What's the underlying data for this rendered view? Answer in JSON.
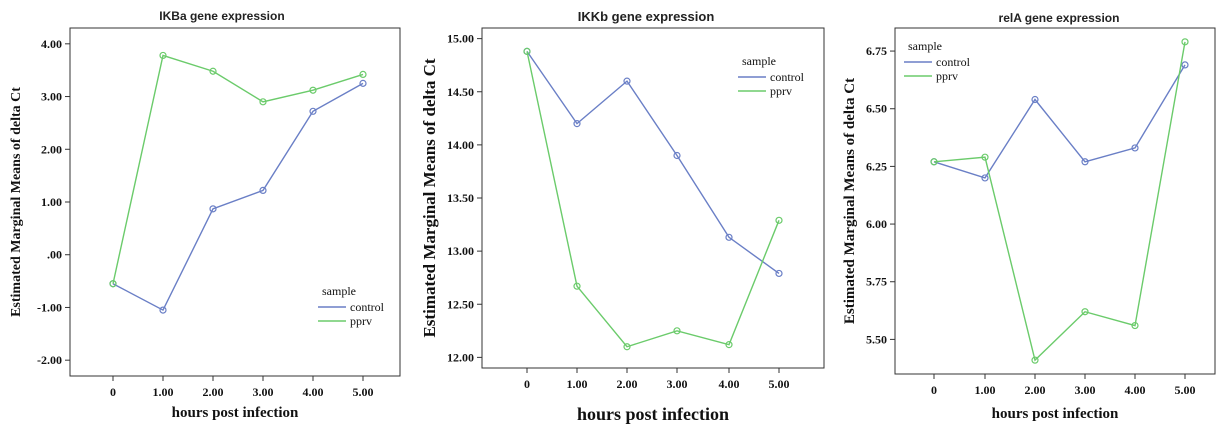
{
  "chart_data": [
    {
      "type": "line",
      "title": "IKBa gene expression",
      "xlabel": "hours post infection",
      "ylabel": "Estimated Marginal Means of delta Ct",
      "categories": [
        "0",
        "1.00",
        "2.00",
        "3.00",
        "4.00",
        "5.00"
      ],
      "x": [
        0,
        1,
        2,
        3,
        4,
        5
      ],
      "ylim": [
        -2.3,
        4.3
      ],
      "yticks": [
        -2,
        -1,
        0,
        1,
        2,
        3,
        4
      ],
      "ytick_labels": [
        "-2.00",
        "-1.00",
        ".00",
        "1.00",
        "2.00",
        "3.00",
        "4.00"
      ],
      "legend": {
        "title": "sample",
        "placement": "bottom-right"
      },
      "series": [
        {
          "name": "control",
          "color": "#6a7fc6",
          "values": [
            -0.55,
            -1.05,
            0.87,
            1.22,
            2.72,
            3.25
          ]
        },
        {
          "name": "pprv",
          "color": "#6bcb6b",
          "values": [
            -0.55,
            3.78,
            3.48,
            2.9,
            3.12,
            3.42
          ]
        }
      ]
    },
    {
      "type": "line",
      "title": "IKKb gene expression",
      "xlabel": "hours post infection",
      "ylabel": "Estimated Marginal Means of delta Ct",
      "categories": [
        "0",
        "1.00",
        "2.00",
        "3.00",
        "4.00",
        "5.00"
      ],
      "x": [
        0,
        1,
        2,
        3,
        4,
        5
      ],
      "ylim": [
        11.9,
        15.1
      ],
      "yticks": [
        12,
        12.5,
        13,
        13.5,
        14,
        14.5,
        15
      ],
      "ytick_labels": [
        "12.00",
        "12.50",
        "13.00",
        "13.50",
        "14.00",
        "14.50",
        "15.00"
      ],
      "legend": {
        "title": "sample",
        "placement": "top-right"
      },
      "series": [
        {
          "name": "control",
          "color": "#6a7fc6",
          "values": [
            14.88,
            14.2,
            14.6,
            13.9,
            13.13,
            12.79
          ]
        },
        {
          "name": "pprv",
          "color": "#6bcb6b",
          "values": [
            14.88,
            12.67,
            12.1,
            12.25,
            12.12,
            13.29
          ]
        }
      ]
    },
    {
      "type": "line",
      "title": "relA gene expression",
      "xlabel": "hours post infection",
      "ylabel": "Estimated Marginal Means of delta Ct",
      "categories": [
        "0",
        "1.00",
        "2.00",
        "3.00",
        "4.00",
        "5.00"
      ],
      "x": [
        0,
        1,
        2,
        3,
        4,
        5
      ],
      "ylim": [
        5.35,
        6.85
      ],
      "yticks": [
        5.5,
        5.75,
        6,
        6.25,
        6.5,
        6.75
      ],
      "ytick_labels": [
        "5.50",
        "5.75",
        "6.00",
        "6.25",
        "6.50",
        "6.75"
      ],
      "legend": {
        "title": "sample",
        "placement": "top-left"
      },
      "series": [
        {
          "name": "control",
          "color": "#6a7fc6",
          "values": [
            6.27,
            6.2,
            6.54,
            6.27,
            6.33,
            6.69
          ]
        },
        {
          "name": "pprv",
          "color": "#6bcb6b",
          "values": [
            6.27,
            6.29,
            5.41,
            5.62,
            5.56,
            6.79
          ]
        }
      ]
    }
  ]
}
